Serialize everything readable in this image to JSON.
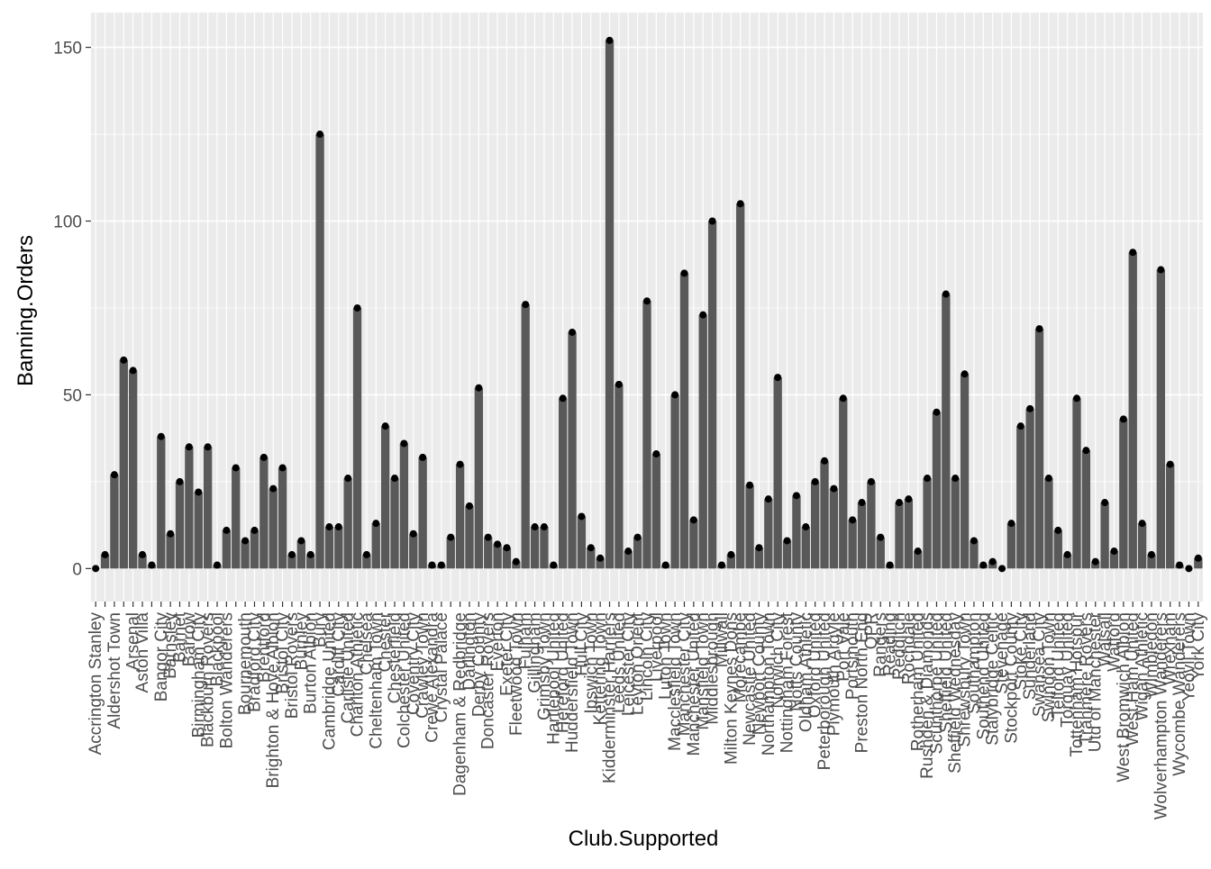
{
  "chart_data": {
    "type": "bar",
    "xlabel": "Club.Supported",
    "ylabel": "Banning.Orders",
    "ylim": [
      -9.5,
      160
    ],
    "yticks": [
      0,
      50,
      100,
      150
    ],
    "grid": true,
    "legend": "none",
    "colors": {
      "panel": "#ebebeb",
      "grid_major": "#ffffff",
      "bar": "#595959",
      "point": "#000000",
      "tick_label": "#4d4d4d",
      "axis_title": "#000000"
    },
    "categories": [
      "Accrington Stanley",
      "",
      "Aldershot Town",
      "",
      "Arsenal",
      "Aston Villa",
      "",
      "Bangor City",
      "Barnsley",
      "Barnet",
      "Barrow",
      "Birmingham City",
      "Blackburn Rovers",
      "Blackpool",
      "Bolton Wanderers",
      "",
      "Bournemouth",
      "Bradford City",
      "Brentford",
      "Brighton & Hove Albion",
      "Bristol City",
      "Bristol Rovers",
      "Burnley",
      "Burton Albion",
      "Bury",
      "Cambridge United",
      "Cardiff City",
      "Carlisle United",
      "Charlton Athletic",
      "Chelsea",
      "Cheltenham Town",
      "Chester",
      "Chesterfield",
      "Colchester United",
      "Coventry City",
      "Crawley Town",
      "Crewe Alexandra",
      "Crystal Palace",
      "",
      "Dagenham & Redbridge",
      "Darlington",
      "Derby County",
      "Doncaster Rovers",
      "Everton",
      "Exeter City",
      "Fleetwood Town",
      "Fulham",
      "Gillingham",
      "Grimsby Town",
      "Hartlepool United",
      "Hereford United",
      "Huddersfield Town",
      "Hull City",
      "Ipswich Town",
      "Kettering Town",
      "Kidderminster Harriers",
      "Leeds United",
      "Leicester City",
      "Leyton Orient",
      "Lincoln City",
      "Liverpool",
      "Luton Town",
      "Macclesfield Town",
      "Manchester City",
      "Manchester United",
      "Mansfield Town",
      "Middlesbrough",
      "Millwall",
      "Milton Keynes Dons",
      "Morecambe",
      "Newcastle United",
      "Newport County",
      "Northampton Town",
      "Norwich City",
      "Nottingham Forest",
      "Notts County",
      "Oldham Athletic",
      "Oxford United",
      "Peterborough United",
      "Plymouth Argyle",
      "Port Vale",
      "Portsmouth",
      "Preston North End",
      "QPR",
      "Rangers",
      "Reading",
      "Redditch",
      "Rochdale",
      "Rotherham United",
      "Rushden & Diamonds",
      "Scunthorpe United",
      "Sheffield United",
      "Sheffield Wednesday",
      "Shrewsbury Town",
      "Southampton",
      "Southend United",
      "Stalybridge Celtic",
      "Stevenage",
      "Stockport County",
      "Stoke City",
      "Sunderland",
      "Swansea City",
      "Swindon Town",
      "Telford United",
      "Torquay United",
      "Tottenham Hotspur",
      "Tranmere Rovers",
      "Utd of Manchester",
      "Walsall",
      "Watford",
      "West Bromwich Albion",
      "West Ham United",
      "Wigan Athletic",
      "Wimbledon",
      "Wolverhampton Wanderers",
      "Wrexham",
      "Wycombe Wanderers",
      "Yeovil Town",
      "York City"
    ],
    "values": [
      0,
      4,
      27,
      60,
      57,
      4,
      1,
      38,
      10,
      25,
      35,
      22,
      35,
      1,
      11,
      29,
      8,
      11,
      32,
      23,
      29,
      4,
      8,
      4,
      125,
      12,
      12,
      26,
      75,
      4,
      13,
      41,
      26,
      36,
      10,
      32,
      1,
      1,
      9,
      30,
      18,
      52,
      9,
      7,
      6,
      2,
      76,
      12,
      12,
      1,
      49,
      68,
      15,
      6,
      3,
      152,
      53,
      5,
      9,
      77,
      33,
      1,
      50,
      85,
      14,
      73,
      100,
      1,
      4,
      105,
      24,
      6,
      20,
      55,
      8,
      21,
      12,
      25,
      31,
      23,
      49,
      14,
      19,
      25,
      9,
      1,
      19,
      20,
      5,
      26,
      45,
      79,
      26,
      56,
      8,
      1,
      2,
      0,
      13,
      41,
      46,
      69,
      26,
      11,
      4,
      49,
      34,
      2,
      19,
      5,
      43,
      91,
      13,
      4,
      86,
      30,
      1,
      0,
      3
    ]
  }
}
